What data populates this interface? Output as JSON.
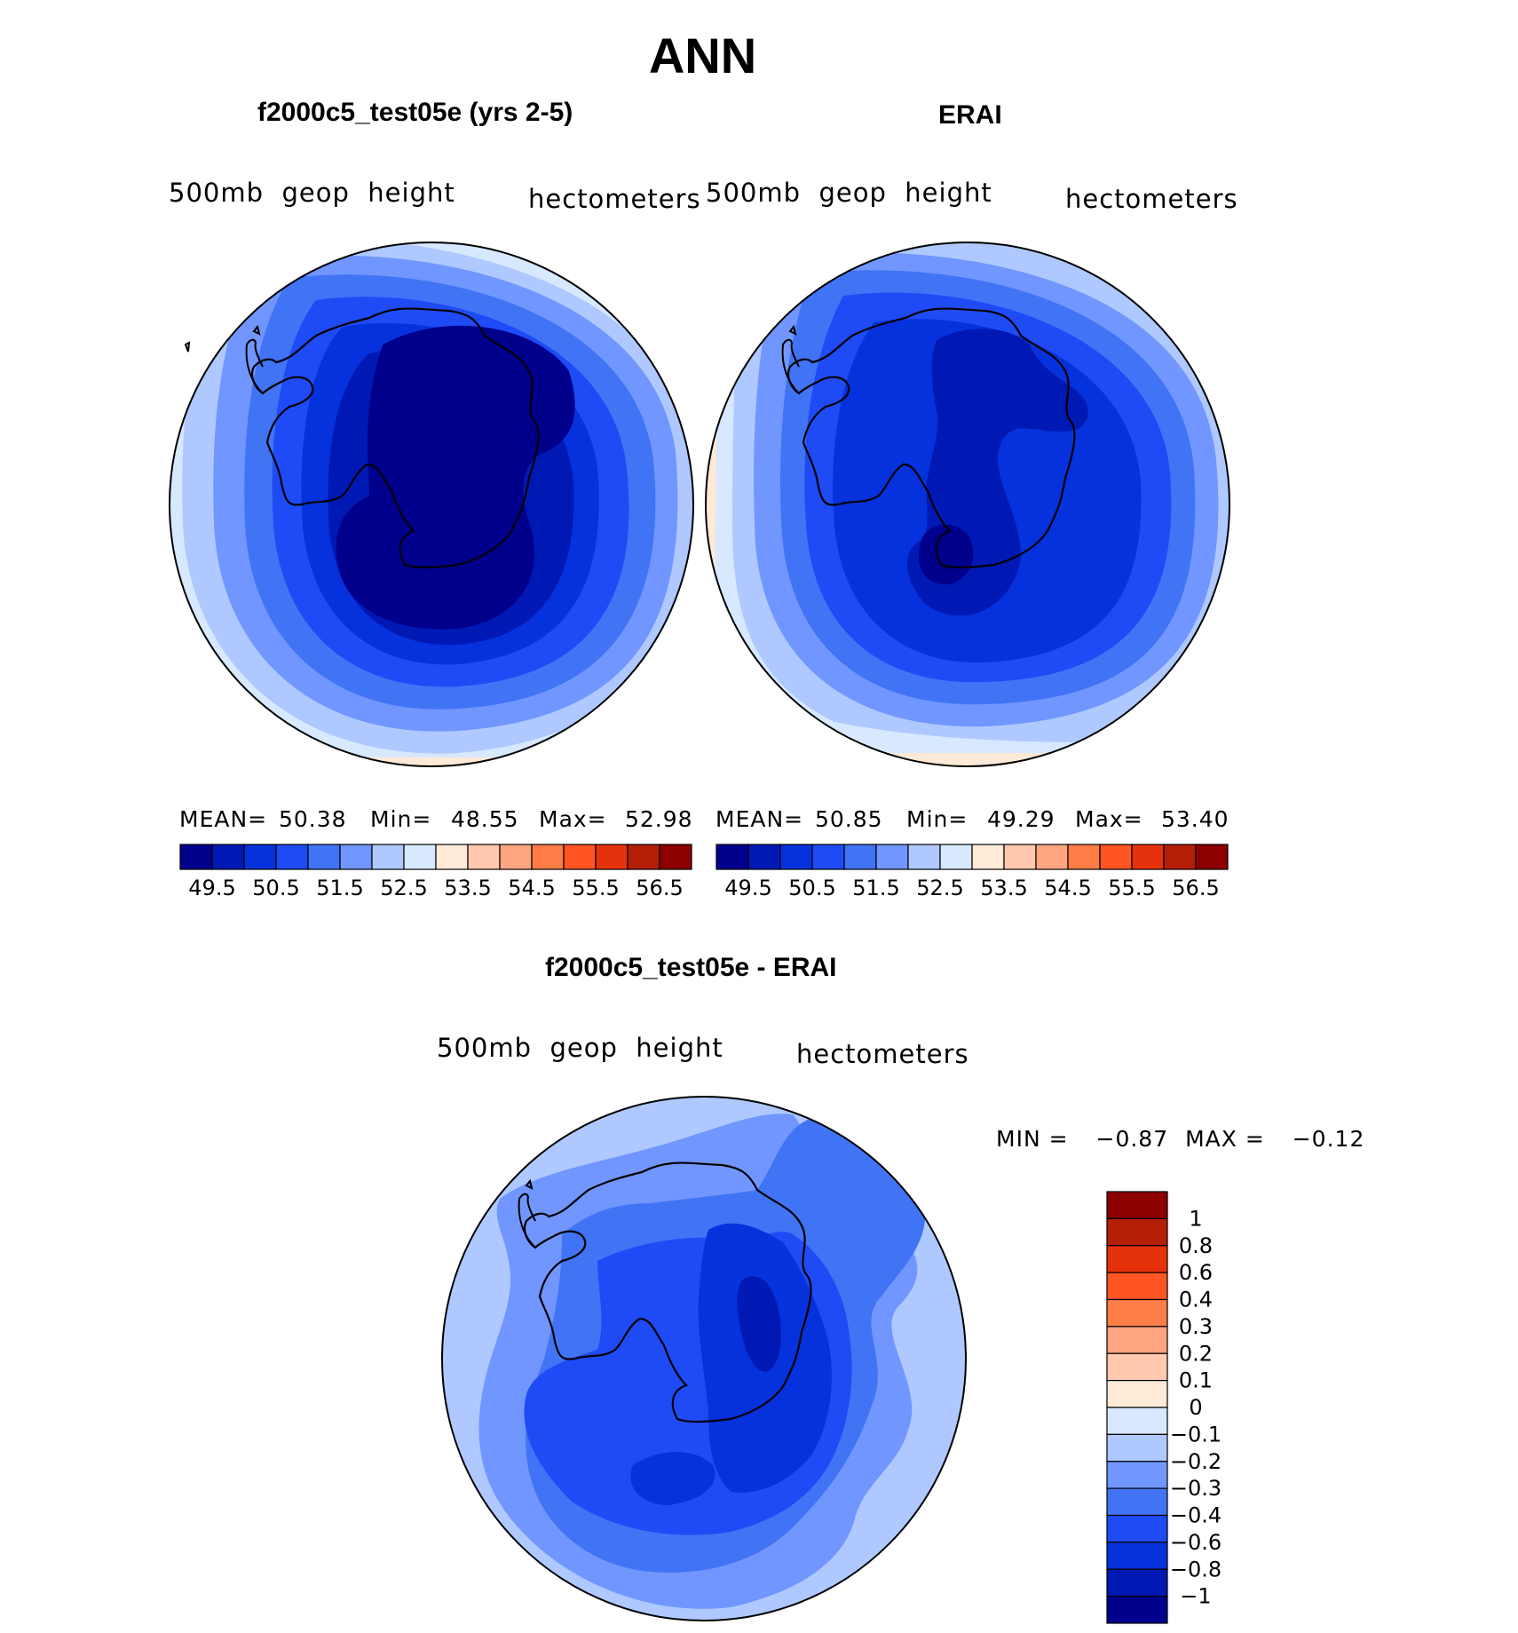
{
  "page": {
    "title": "ANN"
  },
  "colors": {
    "palette16": [
      "#00008c",
      "#0019b4",
      "#0532dc",
      "#1e4bf5",
      "#4173f5",
      "#7196ff",
      "#afc8ff",
      "#d7e8ff",
      "#ffe9d7",
      "#ffc8af",
      "#ffa582",
      "#ff7d46",
      "#ff5523",
      "#e6320a",
      "#b41e05",
      "#8c0000"
    ],
    "land_outline": "#000000"
  },
  "chart_data": [
    {
      "type": "polar-contour-map",
      "title": "f2000c5_test05e (yrs 2-5)",
      "left_label": "500mb  geop  height",
      "right_label": "hectometers",
      "stats": {
        "mean_label": "MEAN=",
        "mean": "50.38",
        "min_label": "Min=",
        "min": "48.55",
        "max_label": "Max=",
        "max": "52.98"
      },
      "contour_levels": [
        49.5,
        50,
        50.5,
        51,
        51.5,
        52,
        52.5,
        53,
        53.5,
        54,
        54.5,
        55,
        55.5,
        56,
        56.5
      ],
      "colorbar_labels": [
        "49.5",
        "50.5",
        "51.5",
        "52.5",
        "53.5",
        "54.5",
        "55.5",
        "56.5"
      ],
      "field_bands": [
        {
          "level_index": 8,
          "value": "53-53.5"
        },
        {
          "level_index": 7,
          "value": "52.5-53"
        },
        {
          "level_index": 6,
          "value": "52-52.5"
        },
        {
          "level_index": 5,
          "value": "51.5-52"
        },
        {
          "level_index": 4,
          "value": "51-51.5"
        },
        {
          "level_index": 3,
          "value": "50.5-51"
        },
        {
          "level_index": 2,
          "value": "50-50.5"
        },
        {
          "level_index": 1,
          "value": "49.5-50"
        },
        {
          "level_index": 0,
          "value": "<49.5"
        }
      ]
    },
    {
      "type": "polar-contour-map",
      "title": "ERAI",
      "left_label": "500mb  geop  height",
      "right_label": "hectometers",
      "stats": {
        "mean_label": "MEAN=",
        "mean": "50.85",
        "min_label": "Min=",
        "min": "49.29",
        "max_label": "Max=",
        "max": "53.40"
      },
      "contour_levels": [
        49.5,
        50,
        50.5,
        51,
        51.5,
        52,
        52.5,
        53,
        53.5,
        54,
        54.5,
        55,
        55.5,
        56,
        56.5
      ],
      "colorbar_labels": [
        "49.5",
        "50.5",
        "51.5",
        "52.5",
        "53.5",
        "54.5",
        "55.5",
        "56.5"
      ],
      "field_bands": [
        {
          "level_index": 8,
          "value": "53-53.5"
        },
        {
          "level_index": 7,
          "value": "52.5-53"
        },
        {
          "level_index": 6,
          "value": "52-52.5"
        },
        {
          "level_index": 5,
          "value": "51.5-52"
        },
        {
          "level_index": 4,
          "value": "51-51.5"
        },
        {
          "level_index": 3,
          "value": "50.5-51"
        },
        {
          "level_index": 2,
          "value": "50-50.5"
        },
        {
          "level_index": 1,
          "value": "49.5-50"
        },
        {
          "level_index": 0,
          "value": "<49.5"
        }
      ]
    },
    {
      "type": "polar-contour-map",
      "title": "f2000c5_test05e - ERAI",
      "left_label": "500mb  geop  height",
      "right_label": "hectometers",
      "stats": {
        "min_label": "MIN =",
        "min": "−0.87",
        "max_label": "MAX =",
        "max": "−0.12"
      },
      "contour_levels": [
        -1,
        -0.8,
        -0.6,
        -0.4,
        -0.3,
        -0.2,
        -0.1,
        0,
        0.1,
        0.2,
        0.3,
        0.4,
        0.6,
        0.8,
        1
      ],
      "colorbar_labels": [
        "1",
        "0.8",
        "0.6",
        "0.4",
        "0.3",
        "0.2",
        "0.1",
        "0",
        "−0.1",
        "−0.2",
        "−0.3",
        "−0.4",
        "−0.6",
        "−0.8",
        "−1"
      ],
      "field_bands": [
        {
          "level_index": 6,
          "value": "-0.2 to -0.1"
        },
        {
          "level_index": 5,
          "value": "-0.3 to -0.2"
        },
        {
          "level_index": 4,
          "value": "-0.4 to -0.3"
        },
        {
          "level_index": 3,
          "value": "-0.6 to -0.4"
        },
        {
          "level_index": 2,
          "value": "-0.8 to -0.6"
        },
        {
          "level_index": 1,
          "value": "-1 to -0.8"
        }
      ]
    }
  ]
}
